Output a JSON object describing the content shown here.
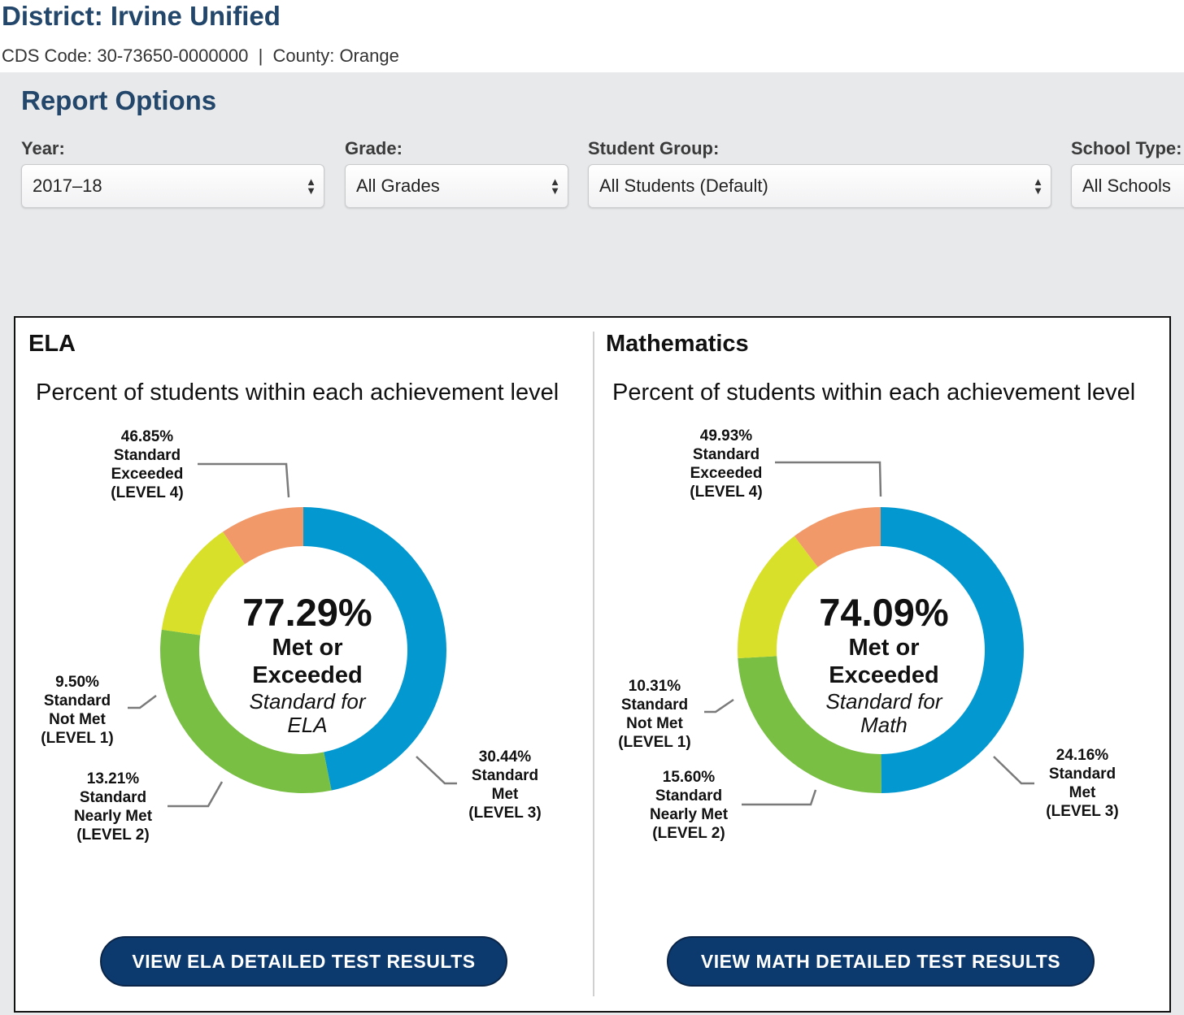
{
  "district": {
    "title": "District: Irvine Unified",
    "cds_code": "CDS Code: 30-73650-0000000",
    "county": "County: Orange",
    "separator": "|"
  },
  "report_options": {
    "title": "Report Options",
    "fields": [
      {
        "label": "Year:",
        "value": "2017–18"
      },
      {
        "label": "Grade:",
        "value": "All Grades"
      },
      {
        "label": "Student Group:",
        "value": "All Students (Default)"
      },
      {
        "label": "School Type:",
        "value": "All Schools"
      }
    ]
  },
  "panels": {
    "ela": {
      "subject": "ELA",
      "chart_title": "Percent of students within each achievement level",
      "center_percent": "77.29%",
      "center_line1": "Met or",
      "center_line2": "Exceeded",
      "center_line3": "Standard for",
      "center_line4": "ELA",
      "button": "VIEW ELA DETAILED TEST RESULTS"
    },
    "math": {
      "subject": "Mathematics",
      "chart_title": "Percent of students within each achievement level",
      "center_percent": "74.09%",
      "center_line1": "Met or",
      "center_line2": "Exceeded",
      "center_line3": "Standard for",
      "center_line4": "Math",
      "button": "VIEW MATH DETAILED TEST RESULTS"
    }
  },
  "colors": {
    "level4": "#0399d0",
    "level3": "#79bf44",
    "level2": "#d8e02a",
    "level1": "#f2996a",
    "leader": "#7a7a7a"
  },
  "chart_data": [
    {
      "type": "pie",
      "title": "Percent of students within each achievement level",
      "center_value": 77.29,
      "slices": [
        {
          "name": "Standard Exceeded",
          "level": "LEVEL 4",
          "value": 46.85,
          "label": [
            "46.85%",
            "Standard",
            "Exceeded",
            "(LEVEL 4)"
          ]
        },
        {
          "name": "Standard Met",
          "level": "LEVEL 3",
          "value": 30.44,
          "label": [
            "30.44%",
            "Standard",
            "Met",
            "(LEVEL 3)"
          ]
        },
        {
          "name": "Standard Nearly Met",
          "level": "LEVEL 2",
          "value": 13.21,
          "label": [
            "13.21%",
            "Standard",
            "Nearly Met",
            "(LEVEL 2)"
          ]
        },
        {
          "name": "Standard Not Met",
          "level": "LEVEL 1",
          "value": 9.5,
          "label": [
            "9.50%",
            "Standard",
            "Not Met",
            "(LEVEL 1)"
          ]
        }
      ]
    },
    {
      "type": "pie",
      "title": "Percent of students within each achievement level",
      "center_value": 74.09,
      "slices": [
        {
          "name": "Standard Exceeded",
          "level": "LEVEL 4",
          "value": 49.93,
          "label": [
            "49.93%",
            "Standard",
            "Exceeded",
            "(LEVEL 4)"
          ]
        },
        {
          "name": "Standard Met",
          "level": "LEVEL 3",
          "value": 24.16,
          "label": [
            "24.16%",
            "Standard",
            "Met",
            "(LEVEL 3)"
          ]
        },
        {
          "name": "Standard Nearly Met",
          "level": "LEVEL 2",
          "value": 15.6,
          "label": [
            "15.60%",
            "Standard",
            "Nearly Met",
            "(LEVEL 2)"
          ]
        },
        {
          "name": "Standard Not Met",
          "level": "LEVEL 1",
          "value": 10.31,
          "label": [
            "10.31%",
            "Standard",
            "Not Met",
            "(LEVEL 1)"
          ]
        }
      ]
    }
  ]
}
